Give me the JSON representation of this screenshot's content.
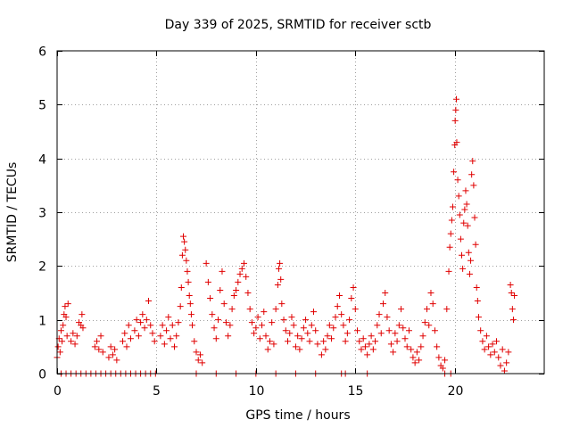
{
  "chart_data": {
    "type": "scatter",
    "title": "Day 339 of 2025, SRMTID for receiver sctb",
    "xlabel": "GPS time / hours",
    "ylabel": "SRMTID / TECUs",
    "xlim": [
      0,
      24.5
    ],
    "ylim": [
      0,
      6
    ],
    "xticks": [
      0,
      5,
      10,
      15,
      20
    ],
    "yticks": [
      0,
      1,
      2,
      3,
      4,
      5,
      6
    ],
    "grid": true,
    "marker": "+",
    "series": [
      {
        "name": "SRMTID",
        "color": "#e00000",
        "points": [
          [
            0.0,
            0.3
          ],
          [
            0.05,
            0.5
          ],
          [
            0.1,
            0.65
          ],
          [
            0.15,
            0.4
          ],
          [
            0.2,
            0.8
          ],
          [
            0.25,
            0.6
          ],
          [
            0.3,
            0.9
          ],
          [
            0.35,
            1.1
          ],
          [
            0.4,
            1.25
          ],
          [
            0.45,
            1.05
          ],
          [
            0.5,
            0.7
          ],
          [
            0.55,
            1.3
          ],
          [
            0.2,
            0.0
          ],
          [
            0.45,
            0.0
          ],
          [
            0.7,
            0.0
          ],
          [
            0.95,
            0.0
          ],
          [
            1.2,
            0.0
          ],
          [
            1.45,
            0.0
          ],
          [
            1.7,
            0.0
          ],
          [
            1.95,
            0.0
          ],
          [
            2.2,
            0.0
          ],
          [
            2.45,
            0.0
          ],
          [
            2.7,
            0.0
          ],
          [
            2.95,
            0.0
          ],
          [
            3.2,
            0.0
          ],
          [
            3.45,
            0.0
          ],
          [
            3.7,
            0.0
          ],
          [
            3.95,
            0.0
          ],
          [
            4.2,
            0.0
          ],
          [
            4.45,
            0.0
          ],
          [
            4.7,
            0.0
          ],
          [
            4.95,
            0.0
          ],
          [
            0.7,
            0.6
          ],
          [
            0.8,
            0.75
          ],
          [
            0.9,
            0.55
          ],
          [
            1.0,
            0.7
          ],
          [
            1.1,
            0.95
          ],
          [
            1.2,
            0.9
          ],
          [
            1.25,
            1.1
          ],
          [
            1.3,
            0.85
          ],
          [
            1.9,
            0.5
          ],
          [
            2.0,
            0.6
          ],
          [
            2.1,
            0.45
          ],
          [
            2.2,
            0.7
          ],
          [
            2.3,
            0.4
          ],
          [
            2.6,
            0.3
          ],
          [
            2.7,
            0.5
          ],
          [
            2.8,
            0.35
          ],
          [
            2.9,
            0.45
          ],
          [
            3.0,
            0.25
          ],
          [
            3.3,
            0.6
          ],
          [
            3.4,
            0.75
          ],
          [
            3.5,
            0.5
          ],
          [
            3.6,
            0.9
          ],
          [
            3.7,
            0.65
          ],
          [
            3.9,
            0.8
          ],
          [
            4.0,
            1.0
          ],
          [
            4.1,
            0.7
          ],
          [
            4.2,
            0.95
          ],
          [
            4.3,
            1.1
          ],
          [
            4.4,
            0.85
          ],
          [
            4.5,
            1.0
          ],
          [
            4.6,
            1.35
          ],
          [
            4.7,
            0.9
          ],
          [
            4.8,
            0.75
          ],
          [
            4.9,
            0.6
          ],
          [
            5.2,
            0.7
          ],
          [
            5.3,
            0.9
          ],
          [
            5.4,
            0.55
          ],
          [
            5.5,
            0.8
          ],
          [
            5.6,
            1.05
          ],
          [
            5.7,
            0.65
          ],
          [
            5.8,
            0.9
          ],
          [
            5.9,
            0.5
          ],
          [
            6.0,
            0.7
          ],
          [
            6.1,
            0.95
          ],
          [
            6.2,
            1.25
          ],
          [
            6.25,
            1.6
          ],
          [
            6.3,
            2.2
          ],
          [
            6.35,
            2.55
          ],
          [
            6.4,
            2.45
          ],
          [
            6.45,
            2.3
          ],
          [
            6.5,
            2.1
          ],
          [
            6.55,
            1.9
          ],
          [
            6.6,
            1.7
          ],
          [
            6.65,
            1.45
          ],
          [
            6.7,
            1.3
          ],
          [
            6.75,
            1.1
          ],
          [
            6.8,
            0.9
          ],
          [
            6.9,
            0.6
          ],
          [
            7.0,
            0.4
          ],
          [
            7.1,
            0.25
          ],
          [
            7.2,
            0.35
          ],
          [
            7.3,
            0.2
          ],
          [
            7.5,
            2.05
          ],
          [
            7.6,
            1.7
          ],
          [
            7.7,
            1.4
          ],
          [
            7.8,
            1.1
          ],
          [
            7.9,
            0.85
          ],
          [
            8.0,
            0.65
          ],
          [
            8.1,
            1.0
          ],
          [
            8.2,
            1.55
          ],
          [
            8.3,
            1.9
          ],
          [
            8.4,
            1.3
          ],
          [
            8.5,
            0.95
          ],
          [
            8.6,
            0.7
          ],
          [
            8.7,
            0.9
          ],
          [
            8.8,
            1.2
          ],
          [
            8.9,
            1.45
          ],
          [
            9.0,
            1.55
          ],
          [
            9.1,
            1.7
          ],
          [
            9.2,
            1.85
          ],
          [
            9.3,
            1.95
          ],
          [
            9.4,
            2.05
          ],
          [
            9.5,
            1.8
          ],
          [
            9.6,
            1.5
          ],
          [
            9.7,
            1.2
          ],
          [
            9.8,
            0.95
          ],
          [
            9.9,
            0.75
          ],
          [
            10.0,
            0.85
          ],
          [
            10.1,
            1.05
          ],
          [
            10.2,
            0.65
          ],
          [
            10.3,
            0.9
          ],
          [
            10.4,
            1.15
          ],
          [
            10.5,
            0.7
          ],
          [
            10.6,
            0.45
          ],
          [
            10.7,
            0.6
          ],
          [
            10.8,
            0.95
          ],
          [
            10.9,
            0.55
          ],
          [
            11.0,
            1.2
          ],
          [
            11.1,
            1.65
          ],
          [
            11.15,
            1.95
          ],
          [
            11.2,
            2.05
          ],
          [
            11.25,
            1.75
          ],
          [
            11.3,
            1.3
          ],
          [
            11.4,
            1.0
          ],
          [
            11.5,
            0.8
          ],
          [
            11.6,
            0.6
          ],
          [
            11.7,
            0.75
          ],
          [
            11.8,
            1.05
          ],
          [
            11.9,
            0.9
          ],
          [
            12.0,
            0.5
          ],
          [
            12.1,
            0.7
          ],
          [
            12.2,
            0.45
          ],
          [
            12.3,
            0.65
          ],
          [
            12.4,
            0.85
          ],
          [
            12.5,
            1.0
          ],
          [
            12.6,
            0.75
          ],
          [
            12.7,
            0.6
          ],
          [
            12.8,
            0.9
          ],
          [
            12.9,
            1.15
          ],
          [
            13.0,
            0.8
          ],
          [
            13.1,
            0.55
          ],
          [
            13.3,
            0.35
          ],
          [
            13.4,
            0.6
          ],
          [
            13.5,
            0.45
          ],
          [
            13.6,
            0.7
          ],
          [
            13.7,
            0.9
          ],
          [
            13.8,
            0.65
          ],
          [
            13.9,
            0.85
          ],
          [
            14.0,
            1.05
          ],
          [
            14.1,
            1.25
          ],
          [
            14.2,
            1.45
          ],
          [
            14.3,
            1.1
          ],
          [
            14.4,
            0.9
          ],
          [
            14.5,
            0.6
          ],
          [
            14.6,
            0.75
          ],
          [
            14.7,
            1.0
          ],
          [
            14.8,
            1.4
          ],
          [
            14.9,
            1.6
          ],
          [
            15.0,
            1.2
          ],
          [
            15.1,
            0.8
          ],
          [
            15.2,
            0.6
          ],
          [
            15.3,
            0.45
          ],
          [
            15.4,
            0.65
          ],
          [
            15.5,
            0.5
          ],
          [
            15.6,
            0.35
          ],
          [
            15.7,
            0.55
          ],
          [
            15.8,
            0.7
          ],
          [
            15.9,
            0.45
          ],
          [
            16.0,
            0.6
          ],
          [
            16.1,
            0.9
          ],
          [
            16.2,
            1.1
          ],
          [
            16.3,
            0.75
          ],
          [
            16.4,
            1.3
          ],
          [
            16.5,
            1.5
          ],
          [
            16.6,
            1.05
          ],
          [
            16.7,
            0.8
          ],
          [
            16.8,
            0.55
          ],
          [
            16.9,
            0.4
          ],
          [
            17.0,
            0.75
          ],
          [
            17.1,
            0.6
          ],
          [
            17.2,
            0.9
          ],
          [
            17.3,
            1.2
          ],
          [
            17.4,
            0.85
          ],
          [
            17.5,
            0.65
          ],
          [
            17.6,
            0.5
          ],
          [
            17.7,
            0.8
          ],
          [
            17.8,
            0.45
          ],
          [
            17.9,
            0.3
          ],
          [
            18.0,
            0.2
          ],
          [
            18.1,
            0.4
          ],
          [
            18.2,
            0.25
          ],
          [
            18.3,
            0.5
          ],
          [
            18.4,
            0.7
          ],
          [
            18.5,
            0.95
          ],
          [
            18.6,
            1.2
          ],
          [
            18.7,
            0.9
          ],
          [
            18.8,
            1.5
          ],
          [
            18.9,
            1.3
          ],
          [
            19.0,
            0.8
          ],
          [
            19.1,
            0.5
          ],
          [
            19.2,
            0.3
          ],
          [
            19.3,
            0.15
          ],
          [
            19.4,
            0.1
          ],
          [
            19.5,
            0.25
          ],
          [
            7.0,
            0.0
          ],
          [
            8.0,
            0.0
          ],
          [
            9.0,
            0.0
          ],
          [
            10.0,
            0.0
          ],
          [
            11.0,
            0.0
          ],
          [
            12.0,
            0.0
          ],
          [
            13.0,
            0.0
          ],
          [
            14.3,
            0.0
          ],
          [
            14.5,
            0.0
          ],
          [
            15.6,
            0.0
          ],
          [
            19.5,
            0.0
          ],
          [
            19.8,
            0.0
          ],
          [
            19.6,
            1.2
          ],
          [
            19.7,
            1.9
          ],
          [
            19.75,
            2.35
          ],
          [
            19.8,
            2.6
          ],
          [
            19.85,
            2.85
          ],
          [
            19.9,
            3.1
          ],
          [
            19.95,
            3.75
          ],
          [
            20.0,
            4.25
          ],
          [
            20.02,
            4.7
          ],
          [
            20.05,
            4.9
          ],
          [
            20.08,
            5.1
          ],
          [
            20.1,
            4.3
          ],
          [
            20.15,
            3.6
          ],
          [
            20.2,
            3.3
          ],
          [
            20.25,
            2.95
          ],
          [
            20.3,
            2.5
          ],
          [
            20.35,
            2.2
          ],
          [
            20.4,
            1.95
          ],
          [
            20.45,
            2.8
          ],
          [
            20.5,
            3.05
          ],
          [
            20.55,
            3.4
          ],
          [
            20.6,
            3.15
          ],
          [
            20.65,
            2.75
          ],
          [
            20.7,
            2.25
          ],
          [
            20.75,
            1.85
          ],
          [
            20.8,
            2.1
          ],
          [
            20.85,
            3.7
          ],
          [
            20.9,
            3.95
          ],
          [
            20.95,
            3.5
          ],
          [
            21.0,
            2.9
          ],
          [
            21.05,
            2.4
          ],
          [
            21.1,
            1.6
          ],
          [
            21.15,
            1.35
          ],
          [
            21.2,
            1.05
          ],
          [
            21.3,
            0.8
          ],
          [
            21.4,
            0.6
          ],
          [
            21.5,
            0.45
          ],
          [
            21.6,
            0.7
          ],
          [
            21.7,
            0.5
          ],
          [
            21.8,
            0.35
          ],
          [
            21.9,
            0.55
          ],
          [
            22.0,
            0.4
          ],
          [
            22.1,
            0.6
          ],
          [
            22.2,
            0.3
          ],
          [
            22.3,
            0.15
          ],
          [
            22.4,
            0.45
          ],
          [
            22.5,
            0.05
          ],
          [
            22.6,
            0.2
          ],
          [
            22.7,
            0.4
          ],
          [
            22.8,
            1.65
          ],
          [
            22.85,
            1.5
          ],
          [
            22.9,
            1.2
          ],
          [
            22.95,
            1.0
          ],
          [
            23.0,
            1.45
          ]
        ]
      }
    ]
  }
}
